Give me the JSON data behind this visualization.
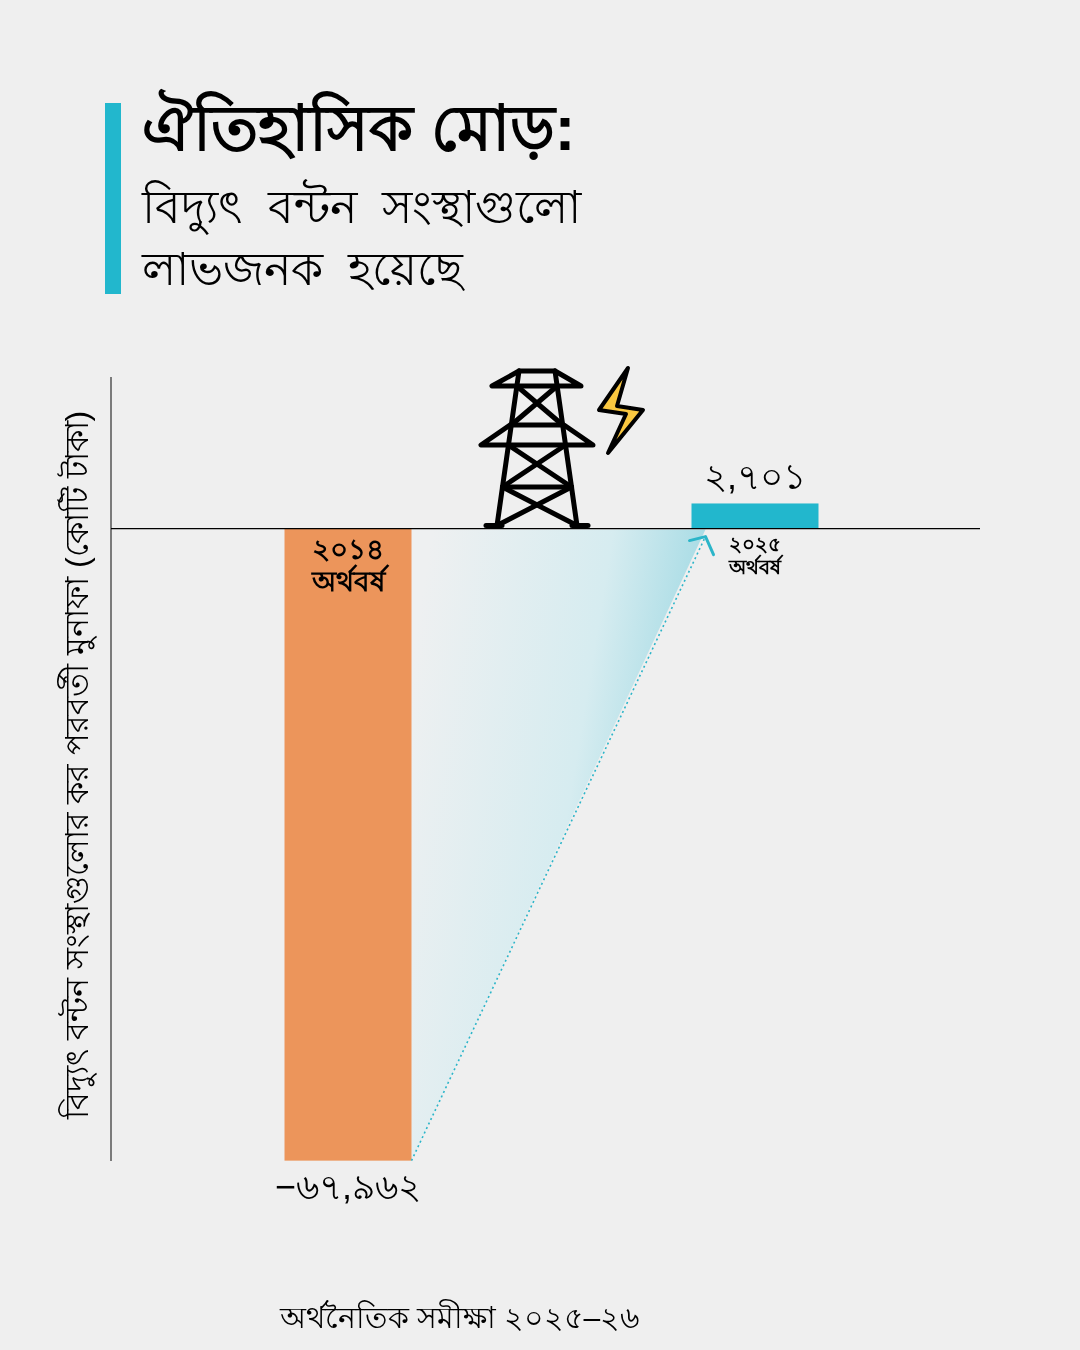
{
  "chart_data": {
    "type": "bar",
    "title": "ঐতিহাসিক মোড়:",
    "subtitle": "বিদ্যুৎ বন্টন সংস্থাগুলো লাভজনক হয়েছে",
    "ylabel": "বিদ্যুৎ বন্টন সংস্থাগুলোর কর পরবর্তী মুনাফা (কোটি টাকা)",
    "categories": [
      "২০১৪ অর্থবর্ষ",
      "২০২৫ অর্থবর্ষ"
    ],
    "values": [
      -67962,
      2701
    ],
    "colors": [
      "#ec955b",
      "#22b7cd"
    ],
    "value_labels": [
      "−৬৭,৯৬২",
      "২,৭০১"
    ],
    "ylim": [
      -68000,
      16300
    ],
    "tick_labels": "x",
    "annotations": [
      "অর্থনৈতিক সমীক্ষা ২০২৫–২৬"
    ]
  }
}
